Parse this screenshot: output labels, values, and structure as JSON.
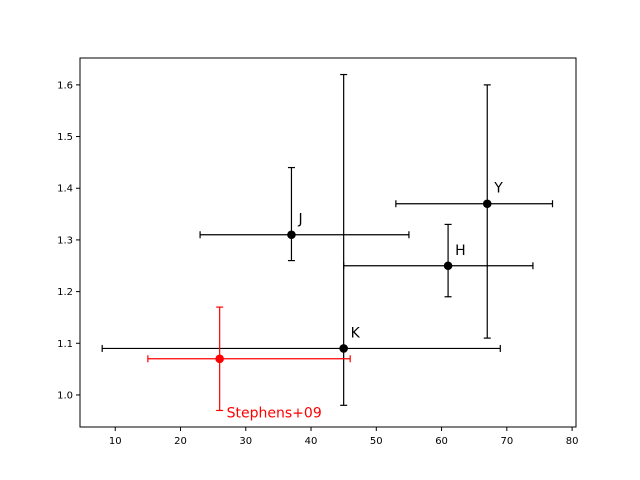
{
  "chart_data": {
    "type": "scatter",
    "xlim": [
      4.6,
      80.6
    ],
    "ylim": [
      0.938,
      1.652
    ],
    "xticks": [
      10,
      20,
      30,
      40,
      50,
      60,
      70,
      80
    ],
    "yticks": [
      1.0,
      1.1,
      1.2,
      1.3,
      1.4,
      1.5,
      1.6
    ],
    "grid": false,
    "points": [
      {
        "label": "J",
        "x": 37,
        "y": 1.31,
        "x_minus": 14,
        "x_plus": 18,
        "y_minus": 0.05,
        "y_plus": 0.13,
        "color": "#000000"
      },
      {
        "label": "H",
        "x": 61,
        "y": 1.25,
        "x_minus": 16,
        "x_plus": 13,
        "y_minus": 0.06,
        "y_plus": 0.08,
        "color": "#000000"
      },
      {
        "label": "K",
        "x": 45,
        "y": 1.09,
        "x_minus": 37,
        "x_plus": 24,
        "y_minus": 0.11,
        "y_plus": 0.53,
        "color": "#000000"
      },
      {
        "label": "Y",
        "x": 67,
        "y": 1.37,
        "x_minus": 14,
        "x_plus": 10,
        "y_minus": 0.26,
        "y_plus": 0.23,
        "color": "#000000"
      },
      {
        "label": "Stephens+09",
        "x": 26,
        "y": 1.07,
        "x_minus": 11,
        "x_plus": 20,
        "y_minus": 0.1,
        "y_plus": 0.1,
        "color": "#ff0000"
      }
    ]
  }
}
